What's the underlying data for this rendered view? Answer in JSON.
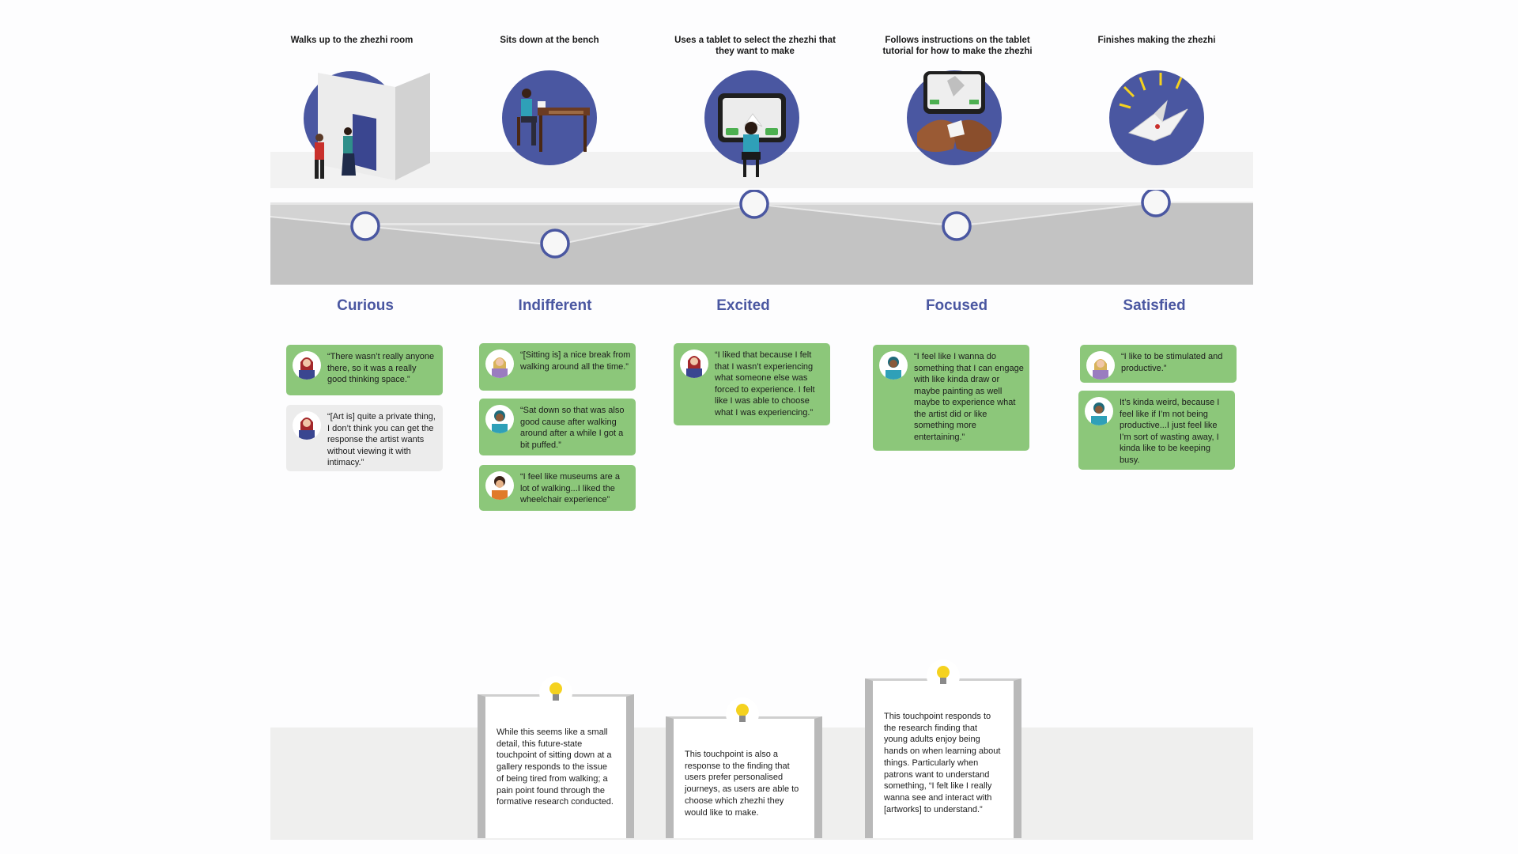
{
  "stages": [
    {
      "title": "Walks up to the zhezhi room",
      "emotion": "Curious"
    },
    {
      "title": "Sits down at the bench",
      "emotion": "Indifferent"
    },
    {
      "title": "Uses a tablet to select the zhezhi that they want to make",
      "emotion": "Excited"
    },
    {
      "title": "Follows instructions on the tablet tutorial for how to make the zhezhi",
      "emotion": "Focused"
    },
    {
      "title": "Finishes making the zhezhi",
      "emotion": "Satisfied"
    }
  ],
  "quotes": {
    "curious_1": "“There wasn’t really anyone there, so it was a really good thinking space.”",
    "curious_2": "“[Art is] quite a private thing, I don’t think you can get the response the artist wants without viewing it with intimacy.”",
    "indifferent_1": "“[Sitting is] a nice break from walking around all the time.”",
    "indifferent_2": "“Sat down so that was also good cause after walking around after a while I got a bit puffed.”",
    "indifferent_3": "“I feel like museums are a lot of walking...I liked the wheelchair experience”",
    "excited_1": "“I liked that because I felt that I wasn’t experiencing what someone else was forced to experience. I felt like I was able to choose what I was experiencing.”",
    "focused_1": "“I feel like I wanna do something that I can engage with like kinda draw or maybe painting as well maybe to experience what the artist did or like something more entertaining.”",
    "satisfied_1": "“I like to be stimulated and productive.”",
    "satisfied_2": "It’s kinda weird, because I feel like if I’m not being productive...I just feel like I’m sort of wasting away, I kinda like to be keeping busy."
  },
  "insights": {
    "bench": "While this seems like a small detail, this future-state touchpoint of sitting down at a gallery responds to the issue of  being tired from walking; a pain point found through the formative research conducted.",
    "tablet": "This touchpoint is also a response to the finding that users prefer personalised journeys, as users are able to choose which zhezhi they would like to make.",
    "tutorial": "This touchpoint responds to the research finding that young adults enjoy being hands on when learning about things. Particularly when patrons want to understand something, “I felt like I really wanna see and interact with [artworks] to understand.”"
  },
  "colors": {
    "accent": "#4a57a1",
    "quote_green": "#8cc77a",
    "quote_grey": "#ececec",
    "bulb": "#f5d21f"
  }
}
